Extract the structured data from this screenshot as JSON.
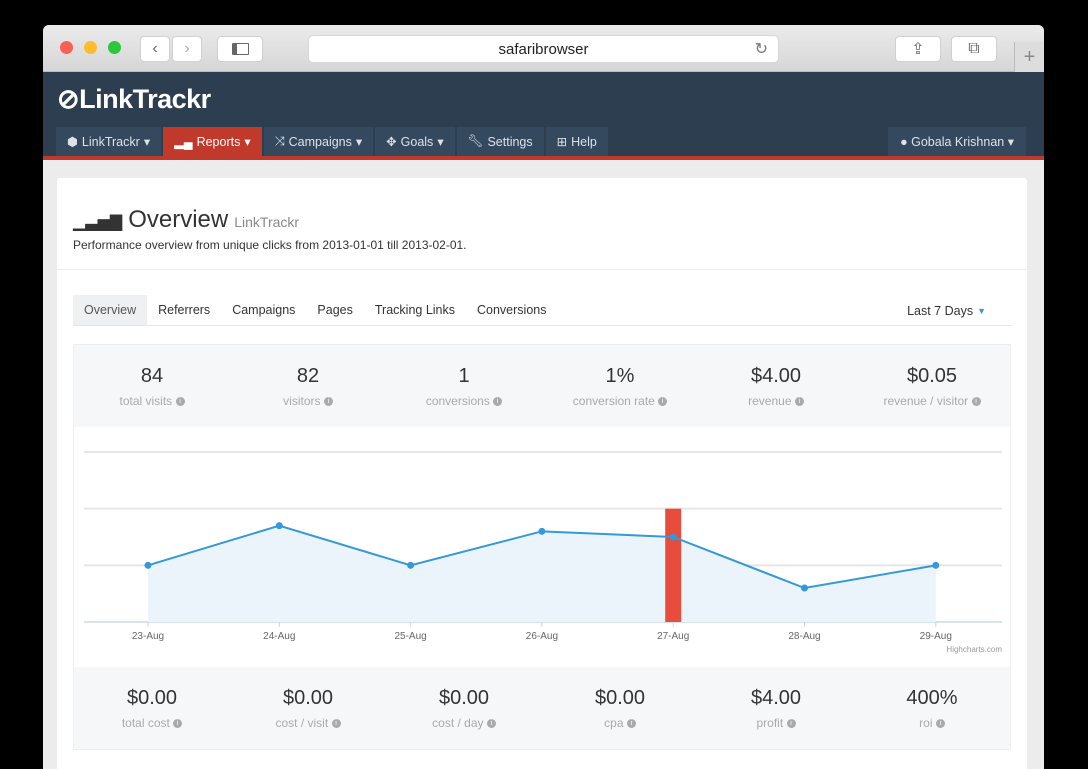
{
  "browser": {
    "url": "safaribrowser"
  },
  "app": {
    "logo": "LinkTrackr",
    "nav": [
      {
        "label": "LinkTrackr",
        "icon": "cube-icon"
      },
      {
        "label": "Reports",
        "icon": "signal-icon",
        "active": true
      },
      {
        "label": "Campaigns",
        "icon": "random-icon"
      },
      {
        "label": "Goals",
        "icon": "crosshair-icon"
      },
      {
        "label": "Settings",
        "icon": "wrench-icon"
      },
      {
        "label": "Help",
        "icon": "medkit-icon"
      }
    ],
    "user": "Gobala Krishnan"
  },
  "page": {
    "title": "Overview",
    "title_sub": "LinkTrackr",
    "subtitle": "Performance overview from unique clicks from 2013-01-01 till 2013-02-01."
  },
  "tabs": [
    "Overview",
    "Referrers",
    "Campaigns",
    "Pages",
    "Tracking Links",
    "Conversions"
  ],
  "range": "Last 7 Days",
  "stats_top": [
    {
      "value": "84",
      "label": "total visits"
    },
    {
      "value": "82",
      "label": "visitors"
    },
    {
      "value": "1",
      "label": "conversions"
    },
    {
      "value": "1%",
      "label": "conversion rate"
    },
    {
      "value": "$4.00",
      "label": "revenue"
    },
    {
      "value": "$0.05",
      "label": "revenue / visitor"
    }
  ],
  "stats_bottom": [
    {
      "value": "$0.00",
      "label": "total cost"
    },
    {
      "value": "$0.00",
      "label": "cost / visit"
    },
    {
      "value": "$0.00",
      "label": "cost / day"
    },
    {
      "value": "$0.00",
      "label": "cpa"
    },
    {
      "value": "$4.00",
      "label": "profit"
    },
    {
      "value": "400%",
      "label": "roi"
    }
  ],
  "chart_data": {
    "type": "area",
    "categories": [
      "23-Aug",
      "24-Aug",
      "25-Aug",
      "26-Aug",
      "27-Aug",
      "28-Aug",
      "29-Aug"
    ],
    "series": [
      {
        "type": "area",
        "values": [
          1.0,
          1.7,
          1.0,
          1.6,
          1.5,
          0.6,
          1.0
        ],
        "color": "#3498db"
      },
      {
        "type": "bar",
        "values": [
          null,
          null,
          null,
          null,
          2.0,
          null,
          null
        ],
        "color": "#e74c3c"
      }
    ],
    "ylim": [
      0,
      3
    ],
    "grid": true,
    "credit": "Highcharts.com"
  }
}
